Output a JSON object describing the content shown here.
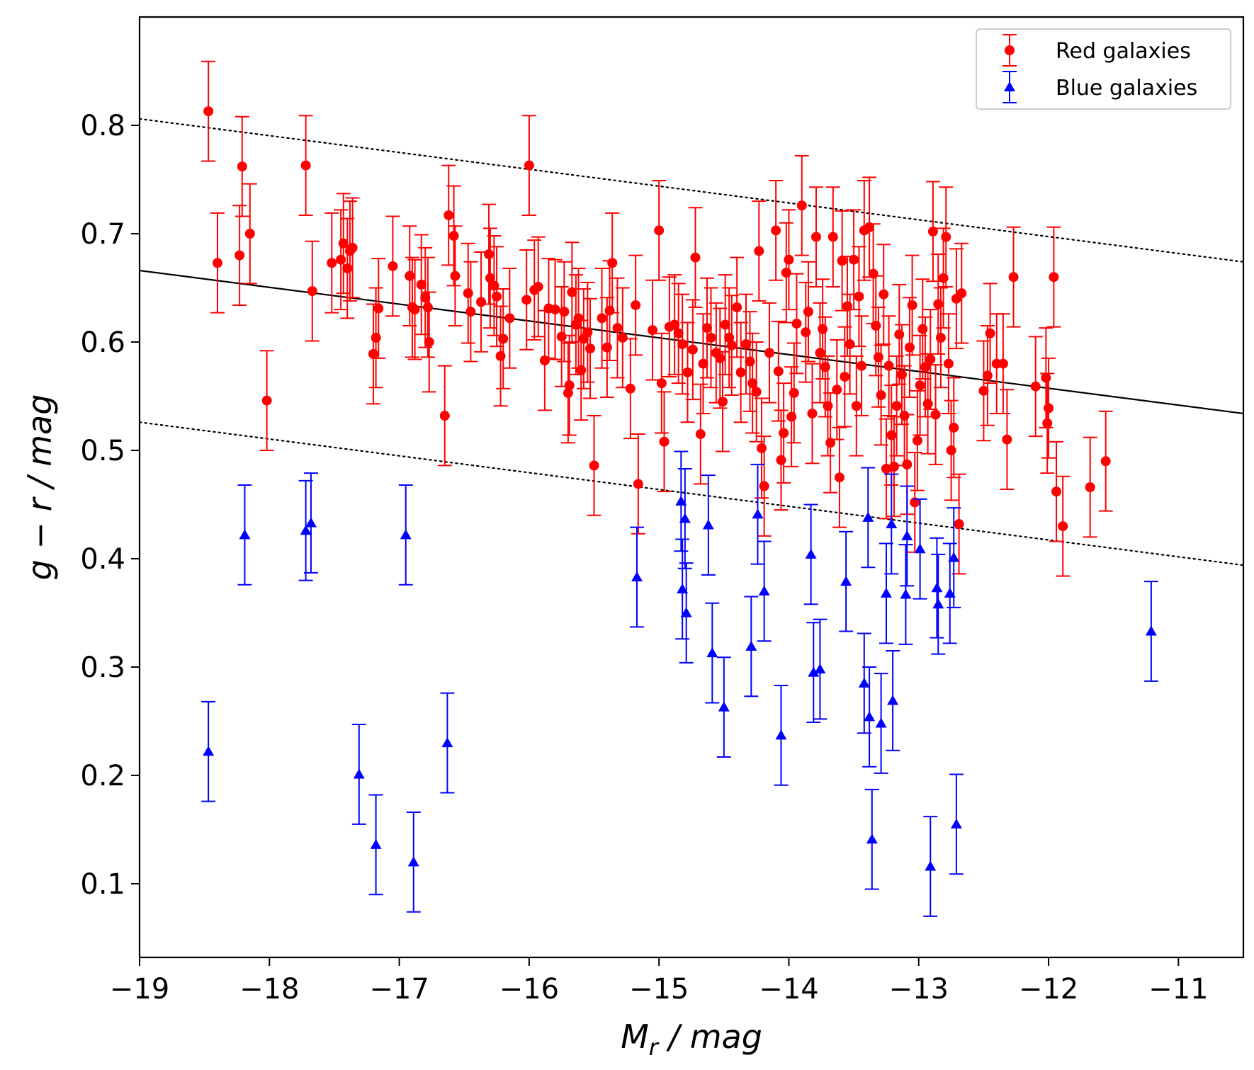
{
  "chart_data": {
    "type": "scatter",
    "title": "",
    "xlabel_main": "M",
    "xlabel_sub": "r",
    "xlabel_suffix": " / mag",
    "ylabel": "g − r / mag",
    "xlim": [
      -19.0,
      -10.5
    ],
    "ylim": [
      0.032,
      0.9
    ],
    "xticks": [
      -19,
      -18,
      -17,
      -16,
      -15,
      -14,
      -13,
      -12,
      -11
    ],
    "xtick_labels": [
      "−19",
      "−18",
      "−17",
      "−16",
      "−15",
      "−14",
      "−13",
      "−12",
      "−11"
    ],
    "yticks": [
      0.1,
      0.2,
      0.3,
      0.4,
      0.5,
      0.6,
      0.7,
      0.8
    ],
    "ytick_labels": [
      "0.1",
      "0.2",
      "0.3",
      "0.4",
      "0.5",
      "0.6",
      "0.7",
      "0.8"
    ],
    "grid": false,
    "legend_position": "top-right",
    "fit_line": {
      "x": [
        -19.0,
        -10.5
      ],
      "y": [
        0.666,
        0.534
      ],
      "style": "solid",
      "color": "#000000"
    },
    "upper_line": {
      "x": [
        -19.0,
        -10.5
      ],
      "y": [
        0.806,
        0.674
      ],
      "style": "dotted",
      "color": "#000000"
    },
    "lower_line": {
      "x": [
        -19.0,
        -10.5
      ],
      "y": [
        0.526,
        0.394
      ],
      "style": "dotted",
      "color": "#000000"
    },
    "series": [
      {
        "name": "Red galaxies",
        "marker": "circle",
        "color": "#ff0000",
        "yerr": 0.046,
        "points": [
          [
            -18.47,
            0.813
          ],
          [
            -18.4,
            0.673
          ],
          [
            -18.23,
            0.68
          ],
          [
            -18.21,
            0.762
          ],
          [
            -18.15,
            0.7
          ],
          [
            -18.02,
            0.546
          ],
          [
            -17.72,
            0.763
          ],
          [
            -17.67,
            0.647
          ],
          [
            -17.52,
            0.673
          ],
          [
            -17.45,
            0.676
          ],
          [
            -17.43,
            0.691
          ],
          [
            -17.4,
            0.668
          ],
          [
            -17.38,
            0.684
          ],
          [
            -17.36,
            0.687
          ],
          [
            -17.2,
            0.589
          ],
          [
            -17.18,
            0.604
          ],
          [
            -17.16,
            0.631
          ],
          [
            -17.05,
            0.67
          ],
          [
            -16.92,
            0.661
          ],
          [
            -16.9,
            0.632
          ],
          [
            -16.88,
            0.63
          ],
          [
            -16.83,
            0.653
          ],
          [
            -16.8,
            0.641
          ],
          [
            -16.78,
            0.632
          ],
          [
            -16.77,
            0.6
          ],
          [
            -16.65,
            0.532
          ],
          [
            -16.62,
            0.717
          ],
          [
            -16.58,
            0.698
          ],
          [
            -16.57,
            0.661
          ],
          [
            -16.47,
            0.645
          ],
          [
            -16.45,
            0.628
          ],
          [
            -16.37,
            0.637
          ],
          [
            -16.31,
            0.681
          ],
          [
            -16.3,
            0.659
          ],
          [
            -16.27,
            0.652
          ],
          [
            -16.25,
            0.642
          ],
          [
            -16.22,
            0.587
          ],
          [
            -16.2,
            0.603
          ],
          [
            -16.15,
            0.622
          ],
          [
            -16.02,
            0.639
          ],
          [
            -16.0,
            0.763
          ],
          [
            -15.96,
            0.648
          ],
          [
            -15.93,
            0.651
          ],
          [
            -15.88,
            0.583
          ],
          [
            -15.85,
            0.631
          ],
          [
            -15.8,
            0.63
          ],
          [
            -15.75,
            0.605
          ],
          [
            -15.73,
            0.628
          ],
          [
            -15.7,
            0.553
          ],
          [
            -15.69,
            0.56
          ],
          [
            -15.67,
            0.646
          ],
          [
            -15.64,
            0.616
          ],
          [
            -15.62,
            0.622
          ],
          [
            -15.6,
            0.574
          ],
          [
            -15.58,
            0.603
          ],
          [
            -15.55,
            0.609
          ],
          [
            -15.53,
            0.594
          ],
          [
            -15.5,
            0.486
          ],
          [
            -15.44,
            0.622
          ],
          [
            -15.4,
            0.595
          ],
          [
            -15.38,
            0.629
          ],
          [
            -15.36,
            0.673
          ],
          [
            -15.32,
            0.613
          ],
          [
            -15.28,
            0.604
          ],
          [
            -15.22,
            0.557
          ],
          [
            -15.18,
            0.634
          ],
          [
            -15.16,
            0.469
          ],
          [
            -15.05,
            0.611
          ],
          [
            -15.0,
            0.703
          ],
          [
            -14.98,
            0.562
          ],
          [
            -14.96,
            0.508
          ],
          [
            -14.92,
            0.614
          ],
          [
            -14.88,
            0.616
          ],
          [
            -14.85,
            0.608
          ],
          [
            -14.82,
            0.598
          ],
          [
            -14.78,
            0.572
          ],
          [
            -14.74,
            0.593
          ],
          [
            -14.72,
            0.678
          ],
          [
            -14.68,
            0.515
          ],
          [
            -14.66,
            0.58
          ],
          [
            -14.63,
            0.613
          ],
          [
            -14.6,
            0.604
          ],
          [
            -14.56,
            0.59
          ],
          [
            -14.53,
            0.585
          ],
          [
            -14.51,
            0.545
          ],
          [
            -14.49,
            0.616
          ],
          [
            -14.46,
            0.604
          ],
          [
            -14.44,
            0.597
          ],
          [
            -14.4,
            0.632
          ],
          [
            -14.37,
            0.572
          ],
          [
            -14.33,
            0.598
          ],
          [
            -14.3,
            0.582
          ],
          [
            -14.28,
            0.562
          ],
          [
            -14.25,
            0.554
          ],
          [
            -14.23,
            0.684
          ],
          [
            -14.21,
            0.502
          ],
          [
            -14.19,
            0.467
          ],
          [
            -14.15,
            0.59
          ],
          [
            -14.1,
            0.703
          ],
          [
            -14.08,
            0.573
          ],
          [
            -14.06,
            0.491
          ],
          [
            -14.04,
            0.516
          ],
          [
            -14.02,
            0.664
          ],
          [
            -14.0,
            0.676
          ],
          [
            -13.98,
            0.531
          ],
          [
            -13.96,
            0.553
          ],
          [
            -13.94,
            0.617
          ],
          [
            -13.9,
            0.726
          ],
          [
            -13.87,
            0.609
          ],
          [
            -13.85,
            0.628
          ],
          [
            -13.82,
            0.534
          ],
          [
            -13.79,
            0.697
          ],
          [
            -13.76,
            0.59
          ],
          [
            -13.74,
            0.612
          ],
          [
            -13.72,
            0.577
          ],
          [
            -13.7,
            0.541
          ],
          [
            -13.68,
            0.507
          ],
          [
            -13.66,
            0.697
          ],
          [
            -13.63,
            0.556
          ],
          [
            -13.61,
            0.475
          ],
          [
            -13.59,
            0.675
          ],
          [
            -13.57,
            0.568
          ],
          [
            -13.55,
            0.633
          ],
          [
            -13.53,
            0.598
          ],
          [
            -13.5,
            0.676
          ],
          [
            -13.48,
            0.541
          ],
          [
            -13.46,
            0.642
          ],
          [
            -13.44,
            0.578
          ],
          [
            -13.42,
            0.703
          ],
          [
            -13.38,
            0.706
          ],
          [
            -13.35,
            0.663
          ],
          [
            -13.33,
            0.615
          ],
          [
            -13.31,
            0.586
          ],
          [
            -13.29,
            0.551
          ],
          [
            -13.27,
            0.644
          ],
          [
            -13.25,
            0.483
          ],
          [
            -13.23,
            0.578
          ],
          [
            -13.21,
            0.514
          ],
          [
            -13.19,
            0.485
          ],
          [
            -13.17,
            0.541
          ],
          [
            -13.15,
            0.607
          ],
          [
            -13.13,
            0.57
          ],
          [
            -13.11,
            0.532
          ],
          [
            -13.09,
            0.487
          ],
          [
            -13.07,
            0.595
          ],
          [
            -13.05,
            0.634
          ],
          [
            -13.03,
            0.452
          ],
          [
            -13.01,
            0.509
          ],
          [
            -12.99,
            0.56
          ],
          [
            -12.97,
            0.612
          ],
          [
            -12.95,
            0.577
          ],
          [
            -12.93,
            0.543
          ],
          [
            -12.91,
            0.584
          ],
          [
            -12.89,
            0.702
          ],
          [
            -12.87,
            0.533
          ],
          [
            -12.85,
            0.635
          ],
          [
            -12.83,
            0.604
          ],
          [
            -12.81,
            0.659
          ],
          [
            -12.79,
            0.697
          ],
          [
            -12.77,
            0.58
          ],
          [
            -12.75,
            0.5
          ],
          [
            -12.73,
            0.521
          ],
          [
            -12.71,
            0.64
          ],
          [
            -12.69,
            0.432
          ],
          [
            -12.67,
            0.645
          ],
          [
            -12.5,
            0.555
          ],
          [
            -12.47,
            0.569
          ],
          [
            -12.45,
            0.608
          ],
          [
            -12.4,
            0.58
          ],
          [
            -12.35,
            0.58
          ],
          [
            -12.32,
            0.51
          ],
          [
            -12.27,
            0.66
          ],
          [
            -12.1,
            0.559
          ],
          [
            -12.02,
            0.567
          ],
          [
            -12.01,
            0.525
          ],
          [
            -12.0,
            0.539
          ],
          [
            -11.96,
            0.66
          ],
          [
            -11.94,
            0.462
          ],
          [
            -11.89,
            0.43
          ],
          [
            -11.68,
            0.466
          ],
          [
            -11.56,
            0.49
          ]
        ]
      },
      {
        "name": "Blue galaxies",
        "marker": "triangle",
        "color": "#0000ff",
        "yerr": 0.046,
        "points": [
          [
            -18.47,
            0.222
          ],
          [
            -18.19,
            0.422
          ],
          [
            -17.72,
            0.426
          ],
          [
            -17.68,
            0.433
          ],
          [
            -17.31,
            0.201
          ],
          [
            -17.18,
            0.136
          ],
          [
            -16.95,
            0.422
          ],
          [
            -16.89,
            0.12
          ],
          [
            -16.63,
            0.23
          ],
          [
            -15.17,
            0.383
          ],
          [
            -14.83,
            0.453
          ],
          [
            -14.82,
            0.372
          ],
          [
            -14.8,
            0.437
          ],
          [
            -14.79,
            0.35
          ],
          [
            -14.62,
            0.431
          ],
          [
            -14.59,
            0.313
          ],
          [
            -14.5,
            0.263
          ],
          [
            -14.29,
            0.319
          ],
          [
            -14.24,
            0.441
          ],
          [
            -14.19,
            0.37
          ],
          [
            -14.06,
            0.237
          ],
          [
            -13.83,
            0.404
          ],
          [
            -13.81,
            0.295
          ],
          [
            -13.76,
            0.298
          ],
          [
            -13.56,
            0.379
          ],
          [
            -13.42,
            0.285
          ],
          [
            -13.39,
            0.438
          ],
          [
            -13.38,
            0.254
          ],
          [
            -13.36,
            0.141
          ],
          [
            -13.29,
            0.248
          ],
          [
            -13.25,
            0.368
          ],
          [
            -13.21,
            0.432
          ],
          [
            -13.2,
            0.269
          ],
          [
            -13.1,
            0.367
          ],
          [
            -13.09,
            0.421
          ],
          [
            -12.99,
            0.409
          ],
          [
            -12.91,
            0.116
          ],
          [
            -12.86,
            0.373
          ],
          [
            -12.85,
            0.358
          ],
          [
            -12.76,
            0.368
          ],
          [
            -12.73,
            0.401
          ],
          [
            -12.71,
            0.155
          ],
          [
            -11.21,
            0.333
          ]
        ]
      }
    ]
  }
}
